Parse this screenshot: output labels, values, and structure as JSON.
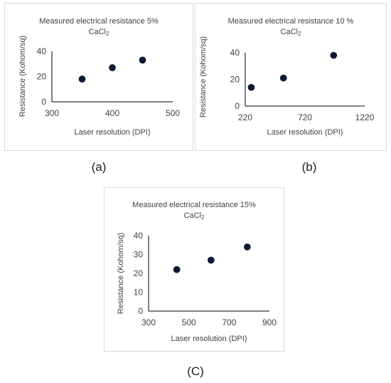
{
  "chart_data": [
    {
      "type": "scatter",
      "title": "Measured electrical resistance 5%",
      "title_line2": "CaCl",
      "title_subscript": "2",
      "xlabel": "Laser resolution (DPI)",
      "ylabel": "Resistance (Kohom/sq)",
      "xlim": [
        300,
        500
      ],
      "ylim": [
        0,
        40
      ],
      "xticks": [
        "300",
        "400",
        "500"
      ],
      "yticks": [
        "0",
        "20",
        "40"
      ],
      "x": [
        350,
        400,
        450
      ],
      "y": [
        18,
        27,
        33
      ],
      "grid": false,
      "marker_color": "#0b1a3a",
      "caption": "(a)"
    },
    {
      "type": "scatter",
      "title": "Measured electrical resistance 10 %",
      "title_line2": "CaCl",
      "title_subscript": "2",
      "xlabel": "Laser resolution (DPI)",
      "ylabel": "Resistance (Kohom/sq)",
      "xlim": [
        220,
        1220
      ],
      "ylim": [
        0,
        40
      ],
      "xticks": [
        "220",
        "720",
        "1220"
      ],
      "yticks": [
        "0",
        "20",
        "40"
      ],
      "x": [
        270,
        540,
        960
      ],
      "y": [
        14,
        21,
        38
      ],
      "grid": false,
      "marker_color": "#0b1a3a",
      "caption": "(b)"
    },
    {
      "type": "scatter",
      "title": "Measured electrical resistance 15%",
      "title_line2": "CaCl",
      "title_subscript": "2",
      "xlabel": "Laser resolution (DPI)",
      "ylabel": "Resistance (Kohom/sq)",
      "xlim": [
        300,
        900
      ],
      "ylim": [
        0,
        40
      ],
      "xticks": [
        "300",
        "500",
        "700",
        "900"
      ],
      "yticks": [
        "0",
        "10",
        "20",
        "30",
        "40"
      ],
      "x": [
        440,
        610,
        790
      ],
      "y": [
        22,
        27,
        34
      ],
      "grid": false,
      "marker_color": "#0b1a3a",
      "caption": "(C)"
    }
  ]
}
